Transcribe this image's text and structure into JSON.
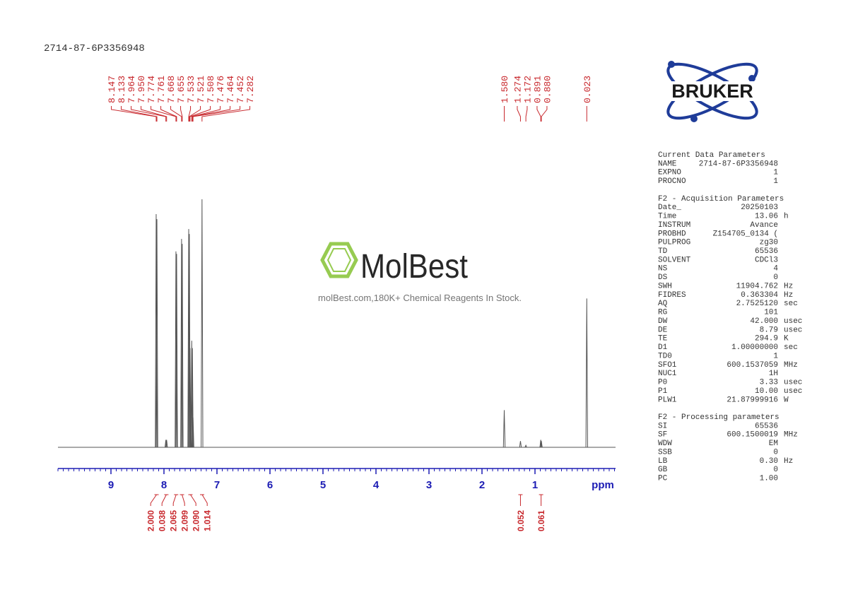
{
  "title": "2714-87-6P3356948",
  "logo": "BRUKER",
  "watermark": {
    "brand": "MolBest",
    "tagline": "molBest.com,180K+ Chemical Reagents In Stock."
  },
  "chart_data": {
    "type": "nmr",
    "xlabel": "ppm",
    "xlim": [
      10.0,
      -0.52
    ],
    "xticks": [
      9,
      8,
      7,
      6,
      5,
      4,
      3,
      2,
      1
    ],
    "xminor_step": 0.1,
    "ylim": [
      0,
      100
    ],
    "color": "#555555",
    "axis_color": "#1c1cb4",
    "label_color": "#c8282d",
    "peaks": {
      "x": [
        8.147,
        8.133,
        7.964,
        7.95,
        7.774,
        7.761,
        7.668,
        7.655,
        7.533,
        7.521,
        7.508,
        7.476,
        7.464,
        7.452,
        7.282,
        1.58,
        1.274,
        1.172,
        0.891,
        0.88,
        0.023
      ],
      "values": [
        94,
        92,
        3,
        3,
        79,
        78,
        84,
        82,
        88,
        86,
        40,
        43,
        40,
        12,
        100,
        15,
        2.5,
        0.8,
        3,
        2.5,
        60
      ]
    },
    "peak_picks": {
      "x": [
        8.147,
        8.133,
        7.964,
        7.95,
        7.774,
        7.761,
        7.668,
        7.655,
        7.533,
        7.521,
        7.508,
        7.476,
        7.464,
        7.452,
        7.282,
        1.58,
        1.274,
        1.172,
        0.891,
        0.88,
        0.023
      ],
      "value_labels": [
        "8.147",
        "8.133",
        "7.964",
        "7.950",
        "7.774",
        "7.761",
        "7.668",
        "7.655",
        "7.533",
        "7.521",
        "7.508",
        "7.476",
        "7.464",
        "7.452",
        "7.282",
        "1.580",
        "1.274",
        "1.172",
        "0.891",
        "0.880",
        "0.023"
      ]
    },
    "integrals": {
      "x": [
        8.14,
        7.955,
        7.77,
        7.66,
        7.5,
        7.28,
        1.274,
        0.885
      ],
      "values": [
        2.0,
        0.038,
        2.065,
        2.099,
        2.09,
        1.014,
        0.052,
        0.061
      ],
      "value_labels": [
        "2.000",
        "0.038",
        "2.065",
        "2.099",
        "2.090",
        "1.014",
        "0.052",
        "0.061"
      ]
    }
  },
  "parameters": [
    {
      "heading": "Current Data Parameters",
      "rows": [
        [
          "NAME",
          "2714-87-6P3356948"
        ],
        [
          "EXPNO",
          "1"
        ],
        [
          "PROCNO",
          "1"
        ]
      ]
    },
    {
      "heading": "F2 - Acquisition Parameters",
      "rows": [
        [
          "Date_",
          "20250103"
        ],
        [
          "Time",
          "13.06",
          "h"
        ],
        [
          "INSTRUM",
          "Avance"
        ],
        [
          "PROBHD",
          "Z154705_0134 ("
        ],
        [
          "PULPROG",
          "zg30"
        ],
        [
          "TD",
          "65536"
        ],
        [
          "SOLVENT",
          "CDCl3"
        ],
        [
          "NS",
          "4"
        ],
        [
          "DS",
          "0"
        ],
        [
          "SWH",
          "11904.762",
          "Hz"
        ],
        [
          "FIDRES",
          "0.363304",
          "Hz"
        ],
        [
          "AQ",
          "2.7525120",
          "sec"
        ],
        [
          "RG",
          "101"
        ],
        [
          "DW",
          "42.000",
          "usec"
        ],
        [
          "DE",
          "8.79",
          "usec"
        ],
        [
          "TE",
          "294.9",
          "K"
        ],
        [
          "D1",
          "1.00000000",
          "sec"
        ],
        [
          "TD0",
          "1"
        ],
        [
          "SFO1",
          "600.1537059",
          "MHz"
        ],
        [
          "NUC1",
          "1H"
        ],
        [
          "P0",
          "3.33",
          "usec"
        ],
        [
          "P1",
          "10.00",
          "usec"
        ],
        [
          "PLW1",
          "21.87999916",
          "W"
        ]
      ]
    },
    {
      "heading": "F2 - Processing parameters",
      "rows": [
        [
          "SI",
          "65536"
        ],
        [
          "SF",
          "600.1500019",
          "MHz"
        ],
        [
          "WDW",
          "EM"
        ],
        [
          "SSB",
          "0"
        ],
        [
          "LB",
          "0.30",
          "Hz"
        ],
        [
          "GB",
          "0"
        ],
        [
          "PC",
          "1.00"
        ]
      ]
    }
  ]
}
